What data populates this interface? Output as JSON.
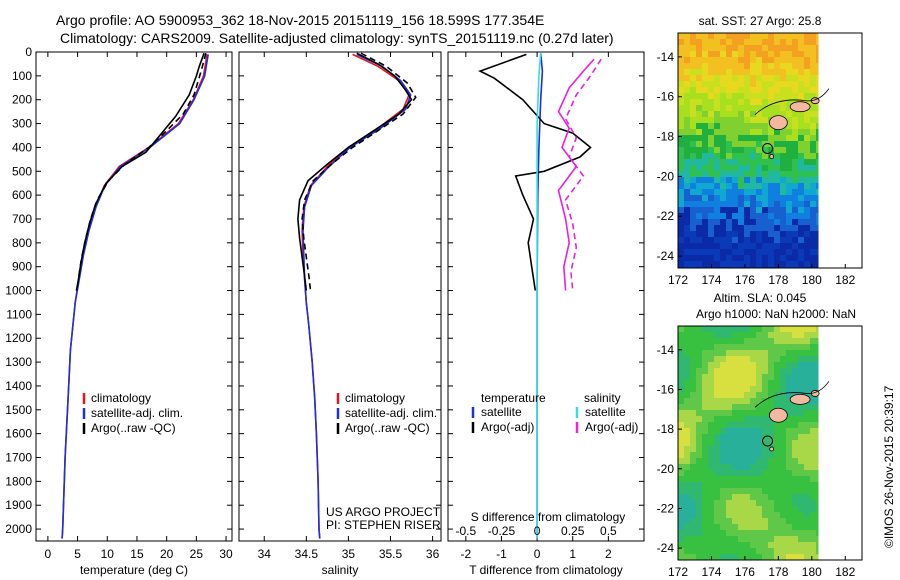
{
  "header": {
    "line1": "Argo profile: AO 5900953_362 18-Nov-2015 20151119_156 18.599S 177.354E",
    "line2": "Climatology: CARS2009. Satellite-adjusted climatology: synTS_20151119.nc (0.27d later)"
  },
  "chart_data": [
    {
      "type": "line",
      "id": "temperature",
      "xlabel": "temperature (deg C)",
      "xlim": [
        -2,
        31
      ],
      "xticks": [
        0,
        5,
        10,
        15,
        20,
        25,
        30
      ],
      "ylim": [
        2050,
        0
      ],
      "yticks": [
        0,
        100,
        200,
        300,
        400,
        500,
        600,
        700,
        800,
        900,
        1000,
        1100,
        1200,
        1300,
        1400,
        1500,
        1600,
        1700,
        1800,
        1900,
        2000
      ],
      "legend": [
        "climatology",
        "satellite-adj. clim.",
        "Argo(..raw -QC)"
      ],
      "colors": {
        "climatology": "#e8141c",
        "satellite": "#1f2fe0",
        "argo": "#000000"
      },
      "series": [
        {
          "name": "climatology",
          "points": [
            [
              26.8,
              10
            ],
            [
              26.2,
              100
            ],
            [
              24.5,
              200
            ],
            [
              22,
              300
            ],
            [
              17,
              400
            ],
            [
              12,
              480
            ],
            [
              9.5,
              560
            ],
            [
              8,
              650
            ],
            [
              6.8,
              750
            ],
            [
              5.9,
              850
            ],
            [
              5.2,
              950
            ],
            [
              4.6,
              1050
            ],
            [
              4.2,
              1150
            ],
            [
              3.8,
              1250
            ],
            [
              3.5,
              1400
            ],
            [
              3.2,
              1550
            ],
            [
              2.9,
              1700
            ],
            [
              2.7,
              1850
            ],
            [
              2.5,
              2000
            ],
            [
              2.4,
              2040
            ]
          ]
        },
        {
          "name": "satellite-adj. clim.",
          "points": [
            [
              27,
              10
            ],
            [
              26.4,
              100
            ],
            [
              24.6,
              200
            ],
            [
              22.2,
              300
            ],
            [
              17.2,
              400
            ],
            [
              12.2,
              480
            ],
            [
              9.6,
              560
            ],
            [
              8.1,
              650
            ],
            [
              6.9,
              750
            ],
            [
              6,
              850
            ],
            [
              5.3,
              950
            ],
            [
              4.6,
              1050
            ],
            [
              4.2,
              1150
            ],
            [
              3.8,
              1250
            ],
            [
              3.5,
              1400
            ],
            [
              3.2,
              1550
            ],
            [
              2.9,
              1700
            ],
            [
              2.7,
              1850
            ],
            [
              2.5,
              2000
            ],
            [
              2.4,
              2040
            ]
          ]
        },
        {
          "name": "Argo(..raw -QC)",
          "points": [
            [
              26.3,
              5
            ],
            [
              25.5,
              60
            ],
            [
              25,
              100
            ],
            [
              23.8,
              180
            ],
            [
              21.5,
              270
            ],
            [
              19.5,
              330
            ],
            [
              16.5,
              420
            ],
            [
              12.5,
              480
            ],
            [
              9.8,
              550
            ],
            [
              8,
              640
            ],
            [
              7,
              720
            ],
            [
              6.2,
              800
            ],
            [
              5.6,
              880
            ],
            [
              5.1,
              960
            ],
            [
              4.8,
              1000
            ]
          ]
        },
        {
          "name": "Argo(..raw -QC) dashed",
          "dashed": true,
          "points": [
            [
              26.6,
              5
            ],
            [
              25.8,
              80
            ],
            [
              24.6,
              180
            ],
            [
              22.8,
              260
            ],
            [
              20,
              330
            ],
            [
              17,
              400
            ],
            [
              13,
              470
            ],
            [
              10.2,
              540
            ],
            [
              8.3,
              620
            ],
            [
              7.2,
              700
            ],
            [
              6.4,
              780
            ],
            [
              5.7,
              860
            ],
            [
              5.2,
              940
            ],
            [
              4.9,
              1000
            ]
          ]
        }
      ]
    },
    {
      "type": "line",
      "id": "salinity",
      "xlabel": "salinity",
      "xlim": [
        33.7,
        36.1
      ],
      "xticks": [
        34,
        34.5,
        35,
        35.5,
        36
      ],
      "ylim": [
        2050,
        0
      ],
      "legend": [
        "climatology",
        "satellite-adj. clim.",
        "Argo(..raw -QC)"
      ],
      "annotation": [
        "US ARGO PROJECT",
        "PI: STEPHEN RISER"
      ],
      "series": [
        {
          "name": "climatology",
          "points": [
            [
              35.05,
              10
            ],
            [
              35.35,
              60
            ],
            [
              35.6,
              120
            ],
            [
              35.72,
              180
            ],
            [
              35.65,
              240
            ],
            [
              35.35,
              320
            ],
            [
              35.0,
              400
            ],
            [
              34.75,
              480
            ],
            [
              34.55,
              560
            ],
            [
              34.47,
              650
            ],
            [
              34.45,
              750
            ],
            [
              34.46,
              850
            ],
            [
              34.48,
              950
            ],
            [
              34.5,
              1050
            ],
            [
              34.53,
              1150
            ],
            [
              34.57,
              1300
            ],
            [
              34.6,
              1450
            ],
            [
              34.62,
              1600
            ],
            [
              34.64,
              1800
            ],
            [
              34.65,
              2000
            ],
            [
              34.66,
              2040
            ]
          ]
        },
        {
          "name": "satellite-adj. clim.",
          "points": [
            [
              35.1,
              10
            ],
            [
              35.4,
              60
            ],
            [
              35.62,
              120
            ],
            [
              35.74,
              180
            ],
            [
              35.68,
              240
            ],
            [
              35.38,
              320
            ],
            [
              35.02,
              400
            ],
            [
              34.77,
              480
            ],
            [
              34.56,
              560
            ],
            [
              34.48,
              650
            ],
            [
              34.46,
              750
            ],
            [
              34.47,
              850
            ],
            [
              34.48,
              950
            ],
            [
              34.5,
              1050
            ],
            [
              34.53,
              1150
            ],
            [
              34.57,
              1300
            ],
            [
              34.6,
              1450
            ],
            [
              34.62,
              1600
            ],
            [
              34.64,
              1800
            ],
            [
              34.65,
              2000
            ],
            [
              34.66,
              2040
            ]
          ]
        },
        {
          "name": "Argo(..raw -QC)",
          "points": [
            [
              35.1,
              5
            ],
            [
              35.35,
              50
            ],
            [
              35.55,
              100
            ],
            [
              35.68,
              160
            ],
            [
              35.75,
              200
            ],
            [
              35.6,
              260
            ],
            [
              35.3,
              330
            ],
            [
              35.0,
              400
            ],
            [
              34.75,
              470
            ],
            [
              34.52,
              540
            ],
            [
              34.42,
              620
            ],
            [
              34.4,
              700
            ],
            [
              34.42,
              780
            ],
            [
              34.45,
              860
            ],
            [
              34.48,
              940
            ],
            [
              34.5,
              1000
            ]
          ]
        },
        {
          "name": "Argo(..raw -QC) dashed",
          "dashed": true,
          "points": [
            [
              35.15,
              5
            ],
            [
              35.45,
              60
            ],
            [
              35.7,
              130
            ],
            [
              35.8,
              190
            ],
            [
              35.65,
              260
            ],
            [
              35.35,
              330
            ],
            [
              35.05,
              400
            ],
            [
              34.8,
              470
            ],
            [
              34.58,
              540
            ],
            [
              34.48,
              620
            ],
            [
              34.45,
              700
            ],
            [
              34.47,
              780
            ],
            [
              34.5,
              860
            ],
            [
              34.53,
              940
            ],
            [
              34.55,
              1000
            ]
          ]
        }
      ]
    },
    {
      "type": "line",
      "id": "difference",
      "xlabel": "T difference from climatology",
      "xlabel_top": "S difference from climatology",
      "xlim": [
        -2.5,
        3
      ],
      "xticks": [
        -2,
        -1,
        0,
        1,
        2
      ],
      "xticks_top_values": [
        -0.5,
        -0.25,
        0,
        0.25,
        0.5
      ],
      "xticks_top_labels": [
        "-0.5",
        "-0.25",
        "0",
        "0.25",
        "0.5"
      ],
      "ylim": [
        2050,
        0
      ],
      "legend_headers": [
        "temperature",
        "salinity"
      ],
      "legend": [
        "satellite",
        "Argo(-adj)",
        "satellite",
        "Argo(-adj)"
      ],
      "colors": {
        "t_sat": "#1f2fe0",
        "t_argo": "#000000",
        "s_sat": "#33dde8",
        "s_argo": "#e820e0"
      },
      "series": [
        {
          "name": "T satellite",
          "points": [
            [
              0.1,
              5
            ],
            [
              0.15,
              80
            ],
            [
              0.1,
              200
            ],
            [
              0.05,
              400
            ],
            [
              0.02,
              600
            ],
            [
              0.01,
              800
            ],
            [
              0,
              1000
            ],
            [
              0,
              1500
            ],
            [
              0,
              2040
            ]
          ]
        },
        {
          "name": "T Argo(-adj)",
          "points": [
            [
              -0.3,
              10
            ],
            [
              -1.6,
              80
            ],
            [
              -1.2,
              110
            ],
            [
              -0.4,
              200
            ],
            [
              0.2,
              300
            ],
            [
              1.0,
              340
            ],
            [
              1.5,
              400
            ],
            [
              1.2,
              440
            ],
            [
              0.2,
              500
            ],
            [
              -0.6,
              520
            ],
            [
              -0.4,
              600
            ],
            [
              -0.1,
              700
            ],
            [
              -0.25,
              800
            ],
            [
              -0.15,
              900
            ],
            [
              -0.05,
              1000
            ]
          ]
        },
        {
          "name": "S satellite",
          "points": [
            [
              0.1,
              5
            ],
            [
              0.05,
              100
            ],
            [
              0,
              300
            ],
            [
              0,
              600
            ],
            [
              0,
              1000
            ],
            [
              0,
              1500
            ],
            [
              0,
              2040
            ]
          ]
        },
        {
          "name": "S Argo(-adj)",
          "points": [
            [
              1.6,
              30
            ],
            [
              1.3,
              80
            ],
            [
              0.9,
              150
            ],
            [
              0.6,
              250
            ],
            [
              0.9,
              320
            ],
            [
              0.7,
              400
            ],
            [
              1.1,
              480
            ],
            [
              0.6,
              580
            ],
            [
              0.8,
              700
            ],
            [
              0.9,
              800
            ],
            [
              0.75,
              900
            ],
            [
              0.8,
              1000
            ]
          ]
        },
        {
          "name": "S Argo(-adj) dashed",
          "dashed": true,
          "points": [
            [
              1.8,
              30
            ],
            [
              1.5,
              100
            ],
            [
              1.1,
              180
            ],
            [
              0.8,
              280
            ],
            [
              1.1,
              360
            ],
            [
              0.9,
              440
            ],
            [
              1.3,
              520
            ],
            [
              0.8,
              620
            ],
            [
              1.0,
              720
            ],
            [
              1.1,
              820
            ],
            [
              0.95,
              920
            ],
            [
              1.0,
              1000
            ]
          ]
        }
      ]
    },
    {
      "type": "heatmap",
      "id": "sst-map",
      "title": "sat. SST: 27 Argo: 25.8",
      "xlim": [
        172,
        183
      ],
      "ylim": [
        -24.6,
        -12.8
      ],
      "xticks": [
        172,
        174,
        176,
        178,
        180,
        182
      ],
      "yticks": [
        -14,
        -16,
        -18,
        -20,
        -22,
        -24
      ],
      "argo_position": [
        177.354,
        -18.599
      ]
    },
    {
      "type": "heatmap",
      "id": "sla-map",
      "title": "Altim. SLA: 0.045",
      "subtitle": "Argo h1000: NaN h2000: NaN",
      "xlim": [
        172,
        183
      ],
      "ylim": [
        -24.6,
        -12.8
      ],
      "xticks": [
        172,
        174,
        176,
        178,
        180,
        182
      ],
      "yticks": [
        -14,
        -16,
        -18,
        -20,
        -22,
        -24
      ],
      "argo_position": [
        177.354,
        -18.599
      ]
    }
  ],
  "credit": "©IMOS 26-Nov-2015 20:39:17"
}
